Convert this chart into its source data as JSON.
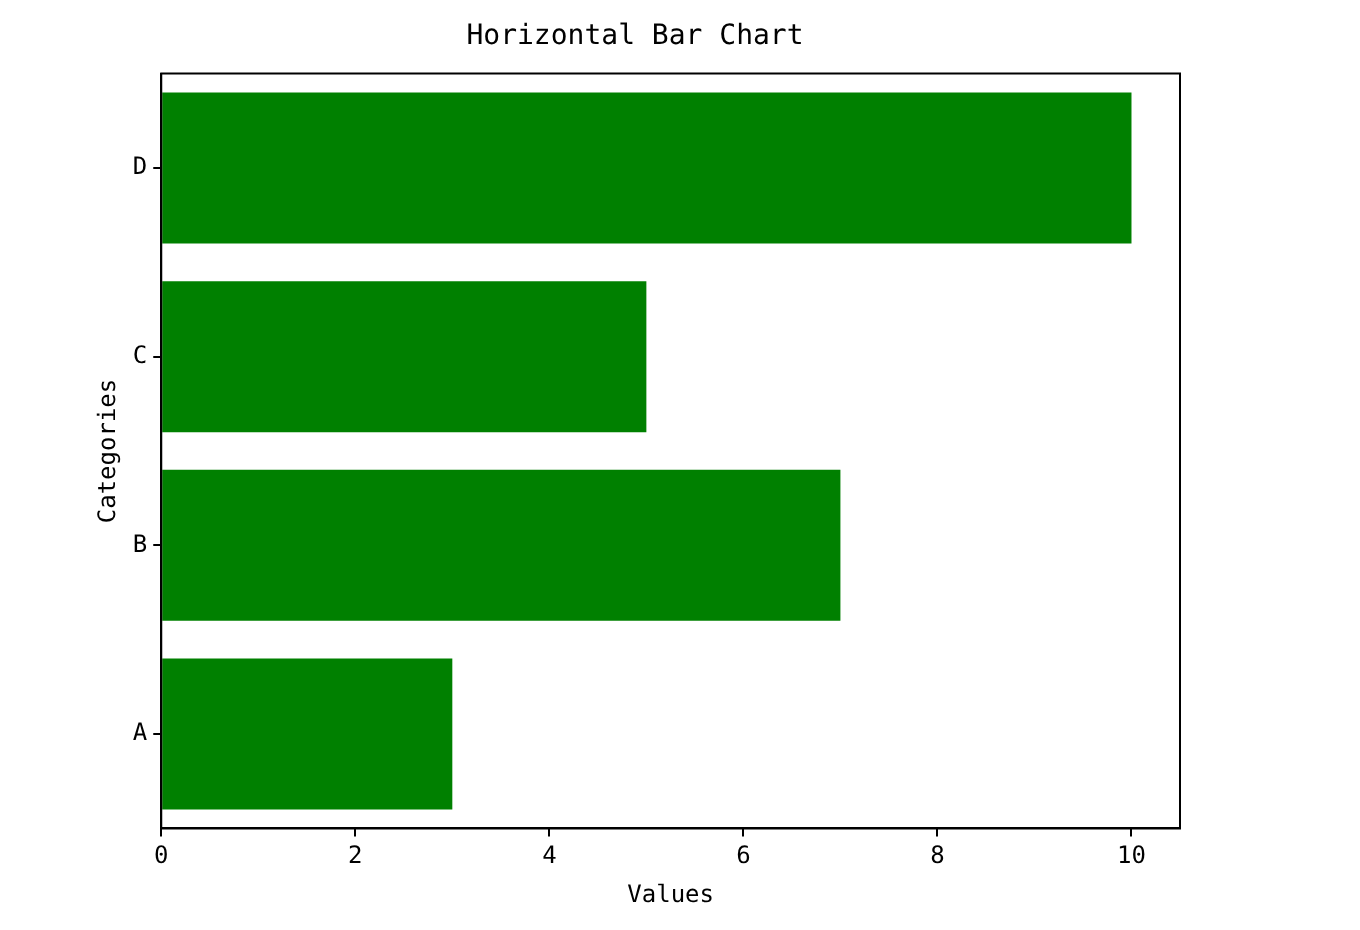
{
  "chart_data": {
    "type": "bar",
    "orientation": "horizontal",
    "title": "Horizontal Bar Chart",
    "xlabel": "Values",
    "ylabel": "Categories",
    "categories": [
      "D",
      "C",
      "B",
      "A"
    ],
    "values": [
      10,
      5,
      7,
      3
    ],
    "color": "#008000",
    "xlim": [
      0,
      10.5
    ],
    "xticks": [
      0,
      2,
      4,
      6,
      8,
      10
    ]
  }
}
